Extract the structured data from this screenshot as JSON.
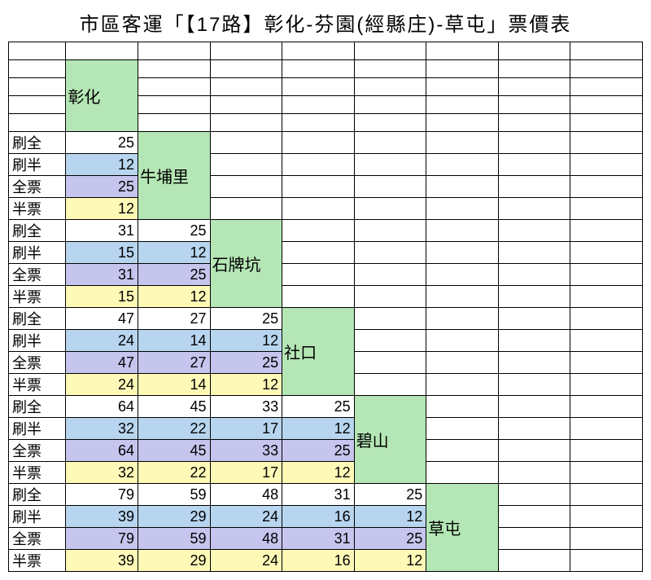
{
  "title": "市區客運「【17路】彰化-芬園(經縣庄)-草屯」票價表",
  "fare_labels": [
    "刷全",
    "刷半",
    "全票",
    "半票"
  ],
  "stations": [
    "彰化",
    "牛埔里",
    "石牌坑",
    "社口",
    "碧山",
    "草屯"
  ],
  "colors": {
    "station_bg": "#b5e6b5",
    "row_bg": [
      "#ffffff",
      "#b8d5f0",
      "#c5c5ee",
      "#fff9b8"
    ]
  },
  "fares": [
    [
      [
        25,
        12,
        25,
        12
      ]
    ],
    [
      [
        31,
        15,
        31,
        15
      ],
      [
        25,
        12,
        25,
        12
      ]
    ],
    [
      [
        47,
        24,
        47,
        24
      ],
      [
        27,
        14,
        27,
        14
      ],
      [
        25,
        12,
        25,
        12
      ]
    ],
    [
      [
        64,
        32,
        64,
        32
      ],
      [
        45,
        22,
        45,
        22
      ],
      [
        33,
        17,
        33,
        17
      ],
      [
        25,
        12,
        25,
        12
      ]
    ],
    [
      [
        79,
        39,
        79,
        39
      ],
      [
        59,
        29,
        59,
        29
      ],
      [
        48,
        24,
        48,
        24
      ],
      [
        31,
        16,
        31,
        16
      ],
      [
        25,
        12,
        25,
        12
      ]
    ]
  ]
}
